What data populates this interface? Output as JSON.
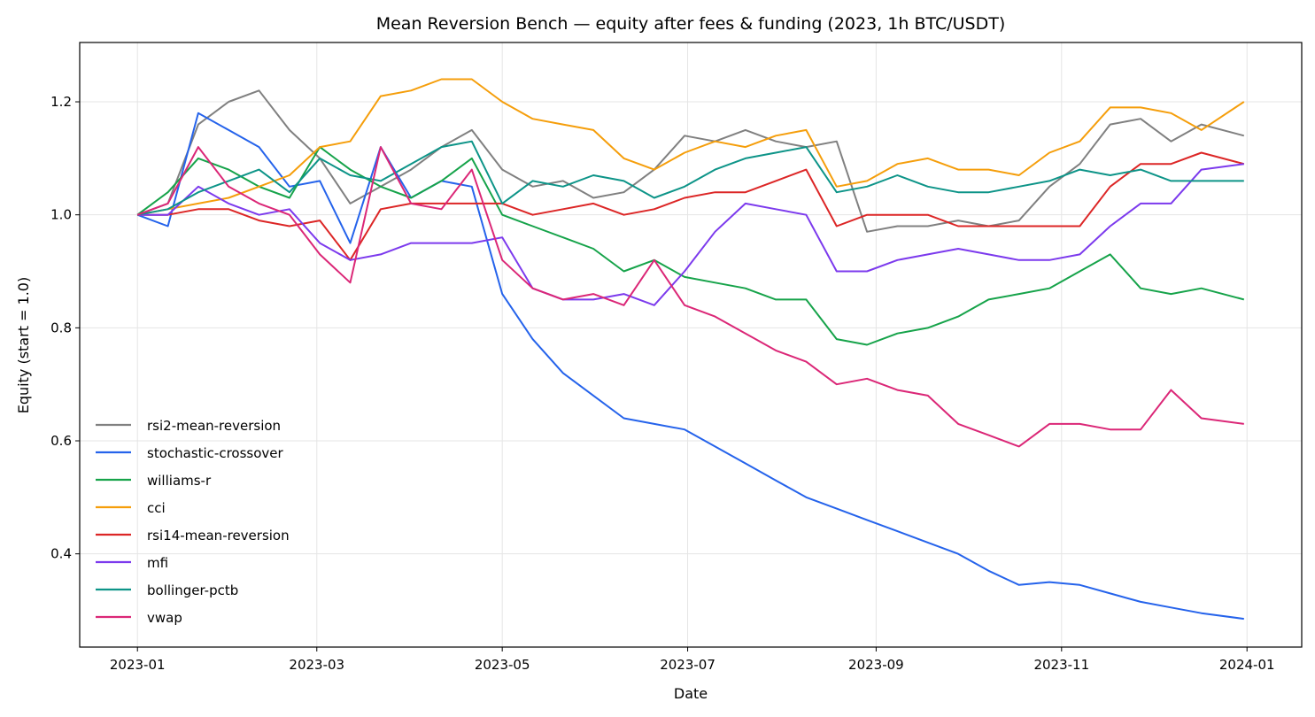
{
  "chart_data": {
    "type": "line",
    "title": "Mean Reversion Bench — equity after fees & funding (2023, 1h BTC/USDT)",
    "xlabel": "Date",
    "ylabel": "Equity (start = 1.0)",
    "xlim": [
      "2022-12-13",
      "2024-01-19"
    ],
    "ylim": [
      0.235,
      1.305
    ],
    "x_ticks": [
      "2023-01-01",
      "2023-03-01",
      "2023-05-01",
      "2023-07-01",
      "2023-09-01",
      "2023-11-01",
      "2024-01-01"
    ],
    "x_tick_labels": [
      "2023-01",
      "2023-03",
      "2023-05",
      "2023-07",
      "2023-09",
      "2023-11",
      "2024-01"
    ],
    "y_ticks": [
      0.4,
      0.6,
      0.8,
      1.0,
      1.2
    ],
    "y_tick_labels": [
      "0.4",
      "0.6",
      "0.8",
      "1.0",
      "1.2"
    ],
    "grid": true,
    "legend_position": "lower-left",
    "x": [
      "2023-01-01",
      "2023-01-11",
      "2023-01-21",
      "2023-01-31",
      "2023-02-10",
      "2023-02-20",
      "2023-03-02",
      "2023-03-12",
      "2023-03-22",
      "2023-04-01",
      "2023-04-11",
      "2023-04-21",
      "2023-05-01",
      "2023-05-11",
      "2023-05-21",
      "2023-05-31",
      "2023-06-10",
      "2023-06-20",
      "2023-06-30",
      "2023-07-10",
      "2023-07-20",
      "2023-07-30",
      "2023-08-09",
      "2023-08-19",
      "2023-08-29",
      "2023-09-08",
      "2023-09-18",
      "2023-09-28",
      "2023-10-08",
      "2023-10-18",
      "2023-10-28",
      "2023-11-07",
      "2023-11-17",
      "2023-11-27",
      "2023-12-07",
      "2023-12-17",
      "2023-12-31"
    ],
    "series": [
      {
        "name": "rsi2-mean-reversion",
        "color": "#808080",
        "values": [
          1.0,
          1.02,
          1.16,
          1.2,
          1.22,
          1.15,
          1.1,
          1.02,
          1.05,
          1.08,
          1.12,
          1.15,
          1.08,
          1.05,
          1.06,
          1.03,
          1.04,
          1.08,
          1.14,
          1.13,
          1.15,
          1.13,
          1.12,
          1.13,
          0.97,
          0.98,
          0.98,
          0.99,
          0.98,
          0.99,
          1.05,
          1.09,
          1.16,
          1.17,
          1.13,
          1.16,
          1.14
        ]
      },
      {
        "name": "stochastic-crossover",
        "color": "#2563eb",
        "values": [
          1.0,
          0.98,
          1.18,
          1.15,
          1.12,
          1.05,
          1.06,
          0.95,
          1.12,
          1.03,
          1.06,
          1.05,
          0.86,
          0.78,
          0.72,
          0.68,
          0.64,
          0.63,
          0.62,
          0.59,
          0.56,
          0.53,
          0.5,
          0.48,
          0.46,
          0.44,
          0.42,
          0.4,
          0.37,
          0.345,
          0.35,
          0.345,
          0.33,
          0.315,
          0.305,
          0.295,
          0.285
        ]
      },
      {
        "name": "williams-r",
        "color": "#16a34a",
        "values": [
          1.0,
          1.04,
          1.1,
          1.08,
          1.05,
          1.03,
          1.12,
          1.08,
          1.05,
          1.03,
          1.06,
          1.1,
          1.0,
          0.98,
          0.96,
          0.94,
          0.9,
          0.92,
          0.89,
          0.88,
          0.87,
          0.85,
          0.85,
          0.78,
          0.77,
          0.79,
          0.8,
          0.82,
          0.85,
          0.86,
          0.87,
          0.9,
          0.93,
          0.87,
          0.86,
          0.87,
          0.85
        ]
      },
      {
        "name": "cci",
        "color": "#f59e0b",
        "values": [
          1.0,
          1.01,
          1.02,
          1.03,
          1.05,
          1.07,
          1.12,
          1.13,
          1.21,
          1.22,
          1.24,
          1.24,
          1.2,
          1.17,
          1.16,
          1.15,
          1.1,
          1.08,
          1.11,
          1.13,
          1.12,
          1.14,
          1.15,
          1.05,
          1.06,
          1.09,
          1.1,
          1.08,
          1.08,
          1.07,
          1.11,
          1.13,
          1.19,
          1.19,
          1.18,
          1.15,
          1.2
        ]
      },
      {
        "name": "rsi14-mean-reversion",
        "color": "#dc2626",
        "values": [
          1.0,
          1.0,
          1.01,
          1.01,
          0.99,
          0.98,
          0.99,
          0.92,
          1.01,
          1.02,
          1.02,
          1.02,
          1.02,
          1.0,
          1.01,
          1.02,
          1.0,
          1.01,
          1.03,
          1.04,
          1.04,
          1.06,
          1.08,
          0.98,
          1.0,
          1.0,
          1.0,
          0.98,
          0.98,
          0.98,
          0.98,
          0.98,
          1.05,
          1.09,
          1.09,
          1.11,
          1.09
        ]
      },
      {
        "name": "mfi",
        "color": "#7c3aed",
        "values": [
          1.0,
          1.0,
          1.05,
          1.02,
          1.0,
          1.01,
          0.95,
          0.92,
          0.93,
          0.95,
          0.95,
          0.95,
          0.96,
          0.87,
          0.85,
          0.85,
          0.86,
          0.84,
          0.9,
          0.97,
          1.02,
          1.01,
          1.0,
          0.9,
          0.9,
          0.92,
          0.93,
          0.94,
          0.93,
          0.92,
          0.92,
          0.93,
          0.98,
          1.02,
          1.02,
          1.08,
          1.09
        ]
      },
      {
        "name": "bollinger-pctb",
        "color": "#0d9488",
        "values": [
          1.0,
          1.01,
          1.04,
          1.06,
          1.08,
          1.04,
          1.1,
          1.07,
          1.06,
          1.09,
          1.12,
          1.13,
          1.02,
          1.06,
          1.05,
          1.07,
          1.06,
          1.03,
          1.05,
          1.08,
          1.1,
          1.11,
          1.12,
          1.04,
          1.05,
          1.07,
          1.05,
          1.04,
          1.04,
          1.05,
          1.06,
          1.08,
          1.07,
          1.08,
          1.06,
          1.06,
          1.06
        ]
      },
      {
        "name": "vwap",
        "color": "#db2777",
        "values": [
          1.0,
          1.02,
          1.12,
          1.05,
          1.02,
          1.0,
          0.93,
          0.88,
          1.12,
          1.02,
          1.01,
          1.08,
          0.92,
          0.87,
          0.85,
          0.86,
          0.84,
          0.92,
          0.84,
          0.82,
          0.79,
          0.76,
          0.74,
          0.7,
          0.71,
          0.69,
          0.68,
          0.63,
          0.61,
          0.59,
          0.63,
          0.63,
          0.62,
          0.62,
          0.69,
          0.64,
          0.63
        ]
      }
    ]
  }
}
